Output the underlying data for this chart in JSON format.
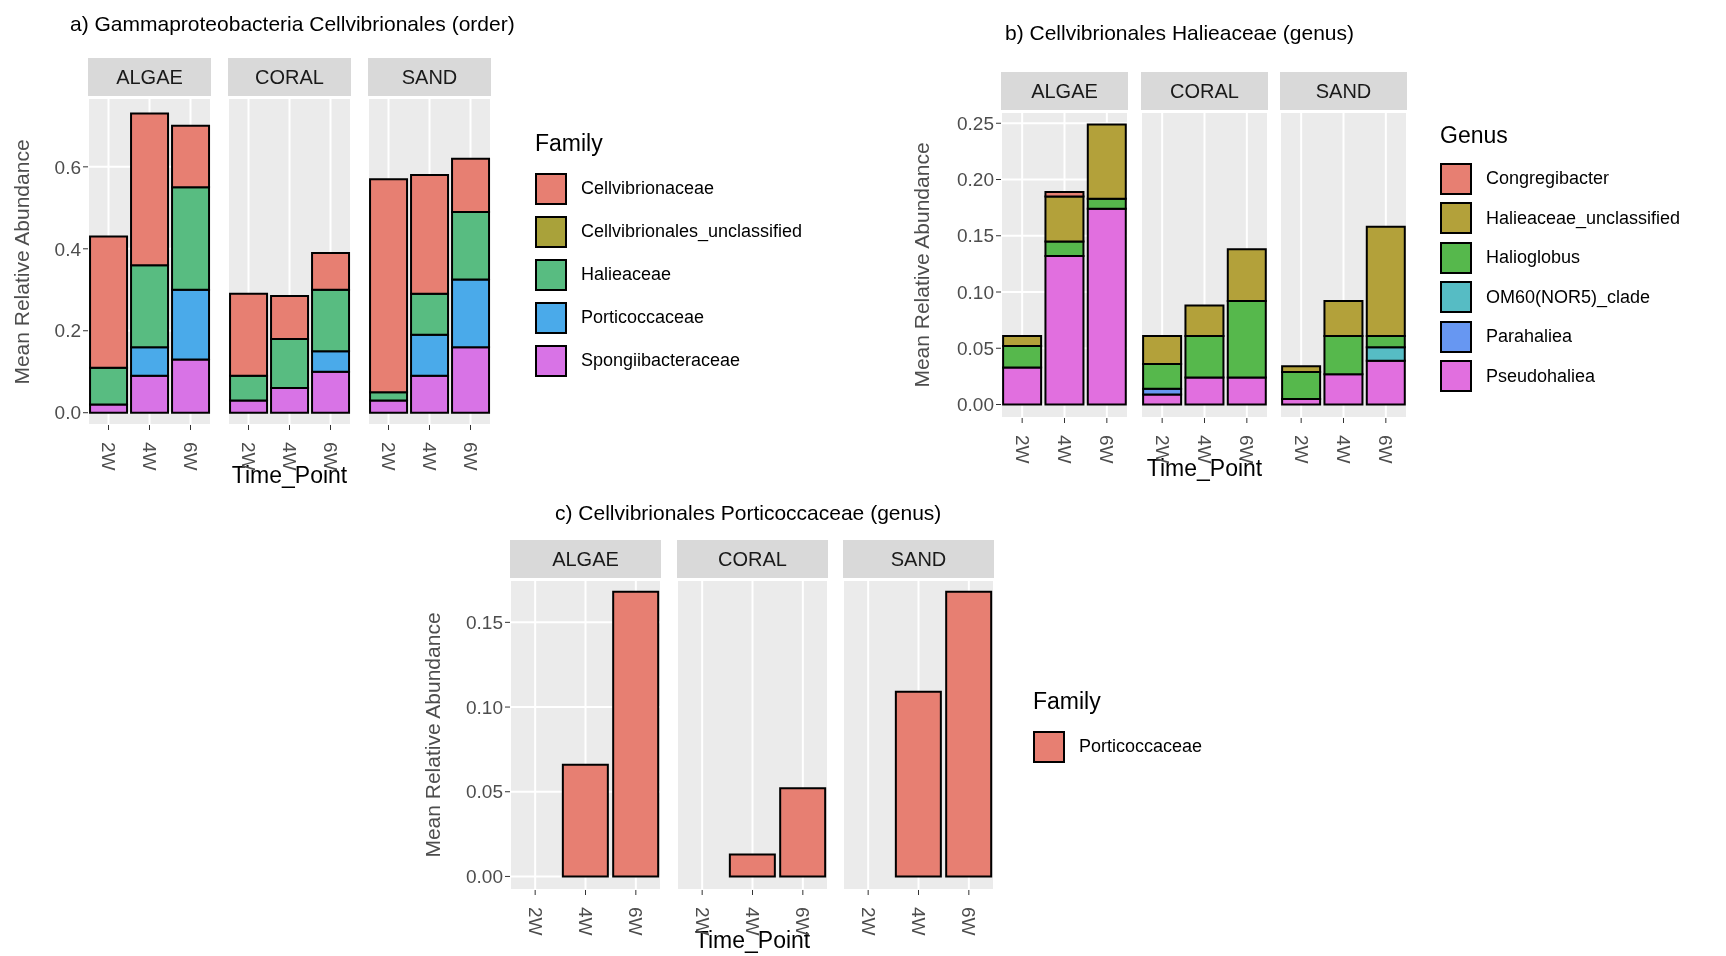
{
  "chart_data": [
    {
      "type": "bar",
      "title": "a) Gammaproteobacteria Cellvibrionales (order)",
      "subtitle": "ALGAE",
      "ylabel": "Mean Relative Abundance",
      "categories": [
        "2W",
        "4W",
        "6W"
      ],
      "stacked": true,
      "grid": true,
      "ylim": [
        -0.03,
        0.768
      ],
      "yticks": [
        {
          "value": 0,
          "label": "0.0"
        },
        0.2,
        0.4,
        0.6
      ],
      "series": [
        {
          "color": "#d873e6",
          "values": [
            0.02,
            0.09,
            0.13
          ]
        },
        {
          "color": "#4aaaea",
          "values": [
            0,
            0.07,
            0.17
          ]
        },
        {
          "color": "#58bc81",
          "values": [
            0.09,
            0.2,
            0.25
          ]
        },
        {
          "color": "#a9a23a",
          "values": [
            0,
            0,
            0
          ]
        },
        {
          "color": "#e77f72",
          "values": [
            0.32,
            0.37,
            0.15
          ]
        }
      ]
    },
    {
      "type": "bar",
      "subtitle": "CORAL",
      "xlabel": "Time_Point",
      "categories": [
        "2W",
        "4W",
        "6W"
      ],
      "stacked": true,
      "grid": true,
      "tick_labels": "x",
      "ylim": [
        -0.03,
        0.768
      ],
      "yticks": [
        0,
        0.2,
        0.4,
        0.6
      ],
      "series": [
        {
          "color": "#d873e6",
          "values": [
            0.03,
            0.06,
            0.1
          ]
        },
        {
          "color": "#4aaaea",
          "values": [
            0,
            0,
            0.05
          ]
        },
        {
          "color": "#58bc81",
          "values": [
            0.06,
            0.12,
            0.15
          ]
        },
        {
          "color": "#a9a23a",
          "values": [
            0,
            0,
            0
          ]
        },
        {
          "color": "#e77f72",
          "values": [
            0.2,
            0.105,
            0.09
          ]
        }
      ]
    },
    {
      "type": "bar",
      "subtitle": "SAND",
      "categories": [
        "2W",
        "4W",
        "6W"
      ],
      "stacked": true,
      "grid": true,
      "legend": "right",
      "legend_title": "Family",
      "tick_labels": "x",
      "ylim": [
        -0.03,
        0.768
      ],
      "yticks": [
        0,
        0.2,
        0.4,
        0.6
      ],
      "series": [
        {
          "name": "Spongiibacteraceae",
          "color": "#d873e6",
          "values": [
            0.03,
            0.09,
            0.16
          ]
        },
        {
          "name": "Porticoccaceae",
          "color": "#4aaaea",
          "values": [
            0,
            0.1,
            0.165
          ]
        },
        {
          "name": "Halieaceae",
          "color": "#58bc81",
          "values": [
            0.02,
            0.1,
            0.165
          ]
        },
        {
          "name": "Cellvibrionales_unclassified",
          "color": "#a9a23a",
          "values": [
            0,
            0,
            0
          ]
        },
        {
          "name": "Cellvibrionaceae",
          "color": "#e77f72",
          "values": [
            0.52,
            0.29,
            0.13
          ]
        }
      ]
    },
    {
      "type": "bar",
      "title": "b) Cellvibrionales Halieaceae (genus)",
      "subtitle": "ALGAE",
      "ylabel": "Mean Relative Abundance",
      "categories": [
        "2W",
        "4W",
        "6W"
      ],
      "stacked": true,
      "grid": true,
      "ylim": [
        -0.012,
        0.26
      ],
      "yticks": [
        {
          "value": 0,
          "label": "0.00"
        },
        0.05,
        {
          "value": 0.1,
          "label": "0.10"
        },
        0.15,
        {
          "value": 0.2,
          "label": "0.20"
        },
        0.25
      ],
      "series": [
        {
          "color": "#e16fdf",
          "values": [
            0.033,
            0.132,
            0.174
          ]
        },
        {
          "color": "#6797f2",
          "values": [
            0,
            0,
            0
          ]
        },
        {
          "color": "#56bcc4",
          "values": [
            0,
            0,
            0
          ]
        },
        {
          "color": "#56b84c",
          "values": [
            0.019,
            0.013,
            0.009
          ]
        },
        {
          "color": "#b3a13a",
          "values": [
            0.009,
            0.04,
            0.066
          ]
        },
        {
          "color": "#e77f72",
          "values": [
            0,
            0.004,
            0
          ]
        }
      ]
    },
    {
      "type": "bar",
      "subtitle": "CORAL",
      "xlabel": "Time_Point",
      "categories": [
        "2W",
        "4W",
        "6W"
      ],
      "stacked": true,
      "grid": true,
      "tick_labels": "x",
      "ylim": [
        -0.012,
        0.26
      ],
      "yticks": [
        0,
        0.05,
        0.1,
        0.15,
        0.2,
        0.25
      ],
      "series": [
        {
          "color": "#e16fdf",
          "values": [
            0.009,
            0.024,
            0.024
          ]
        },
        {
          "color": "#6797f2",
          "values": [
            0.005,
            0,
            0
          ]
        },
        {
          "color": "#56bcc4",
          "values": [
            0,
            0,
            0
          ]
        },
        {
          "color": "#56b84c",
          "values": [
            0.022,
            0.037,
            0.068
          ]
        },
        {
          "color": "#b3a13a",
          "values": [
            0.025,
            0.027,
            0.046
          ]
        },
        {
          "color": "#e77f72",
          "values": [
            0,
            0,
            0
          ]
        }
      ]
    },
    {
      "type": "bar",
      "subtitle": "SAND",
      "categories": [
        "2W",
        "4W",
        "6W"
      ],
      "stacked": true,
      "grid": true,
      "legend": "right",
      "legend_title": "Genus",
      "tick_labels": "x",
      "ylim": [
        -0.012,
        0.26
      ],
      "yticks": [
        0,
        0.05,
        0.1,
        0.15,
        0.2,
        0.25
      ],
      "series": [
        {
          "name": "Pseudohaliea",
          "color": "#e16fdf",
          "values": [
            0.005,
            0.027,
            0.039
          ]
        },
        {
          "name": "Parahaliea",
          "color": "#6797f2",
          "values": [
            0,
            0,
            0
          ]
        },
        {
          "name": "OM60(NOR5)_clade",
          "color": "#56bcc4",
          "values": [
            0,
            0,
            0.012
          ]
        },
        {
          "name": "Halioglobus",
          "color": "#56b84c",
          "values": [
            0.024,
            0.034,
            0.01
          ]
        },
        {
          "name": "Halieaceae_unclassified",
          "color": "#b3a13a",
          "values": [
            0.005,
            0.031,
            0.097
          ]
        },
        {
          "name": "Congregibacter",
          "color": "#e77f72",
          "values": [
            0,
            0,
            0
          ]
        }
      ]
    },
    {
      "type": "bar",
      "title": "c) Cellvibrionales Porticoccaceae (genus)",
      "subtitle": "ALGAE",
      "ylabel": "Mean Relative Abundance",
      "categories": [
        "2W",
        "4W",
        "6W"
      ],
      "stacked": true,
      "grid": true,
      "ylim": [
        -0.008,
        0.175
      ],
      "yticks": [
        {
          "value": 0,
          "label": "0.00"
        },
        0.05,
        {
          "value": 0.1,
          "label": "0.10"
        },
        0.15
      ],
      "series": [
        {
          "color": "#e77f72",
          "values": [
            0,
            0.066,
            0.168
          ]
        }
      ]
    },
    {
      "type": "bar",
      "subtitle": "CORAL",
      "xlabel": "Time_Point",
      "categories": [
        "2W",
        "4W",
        "6W"
      ],
      "stacked": true,
      "grid": true,
      "tick_labels": "x",
      "ylim": [
        -0.008,
        0.175
      ],
      "yticks": [
        0,
        0.05,
        0.1,
        0.15
      ],
      "series": [
        {
          "color": "#e77f72",
          "values": [
            0,
            0.013,
            0.052
          ]
        }
      ]
    },
    {
      "type": "bar",
      "subtitle": "SAND",
      "categories": [
        "2W",
        "4W",
        "6W"
      ],
      "stacked": true,
      "grid": true,
      "legend": "right",
      "legend_title": "Family",
      "tick_labels": "x",
      "ylim": [
        -0.008,
        0.175
      ],
      "yticks": [
        0,
        0.05,
        0.1,
        0.15
      ],
      "series": [
        {
          "name": "Porticoccaceae",
          "color": "#e77f72",
          "values": [
            0,
            0.109,
            0.168
          ]
        }
      ]
    }
  ]
}
